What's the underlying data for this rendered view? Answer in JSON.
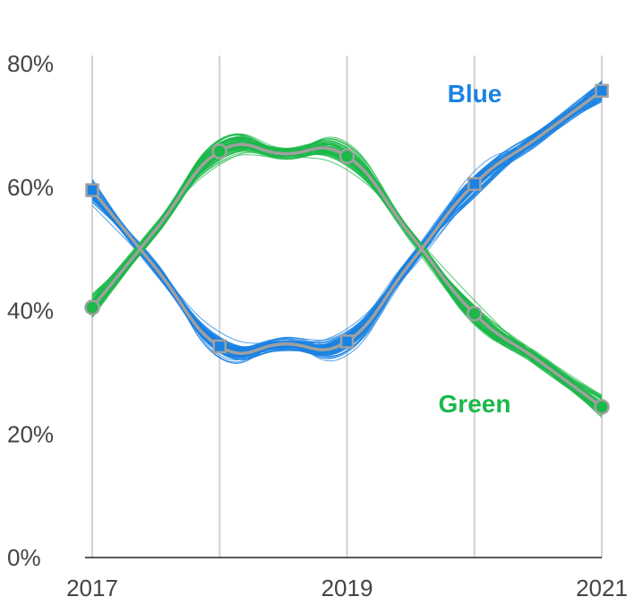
{
  "chart_data": {
    "type": "line",
    "title": "",
    "xlabel": "",
    "ylabel": "",
    "x": [
      2017,
      2017.5,
      2018,
      2018.5,
      2019,
      2019.5,
      2020,
      2020.5,
      2021
    ],
    "x_tick_labels": [
      "2017",
      "2019",
      "2021"
    ],
    "x_tick_values": [
      2017,
      2019,
      2021
    ],
    "x_gridlines": [
      2017,
      2018,
      2019,
      2020,
      2021
    ],
    "xlim": [
      2017,
      2021
    ],
    "y_tick_values": [
      0,
      20,
      40,
      60,
      80
    ],
    "y_tick_labels": [
      "0%",
      "20%",
      "40%",
      "60%",
      "80%"
    ],
    "ylim": [
      0,
      80
    ],
    "grid": "vertical",
    "series": [
      {
        "name": "Blue",
        "color": "#1a82e2",
        "marker": "square",
        "x": [
          2017,
          2018,
          2019,
          2020,
          2021
        ],
        "values": [
          59.5,
          34.2,
          35,
          60.5,
          75.6
        ]
      },
      {
        "name": "Green",
        "color": "#1cb84a",
        "marker": "circle",
        "x": [
          2017,
          2018,
          2019,
          2020,
          2021
        ],
        "values": [
          40.5,
          65.8,
          65,
          39.5,
          24.4
        ]
      }
    ],
    "uncertainty_lines_per_series": 80,
    "mean_line_color": "#a0a0a0"
  }
}
